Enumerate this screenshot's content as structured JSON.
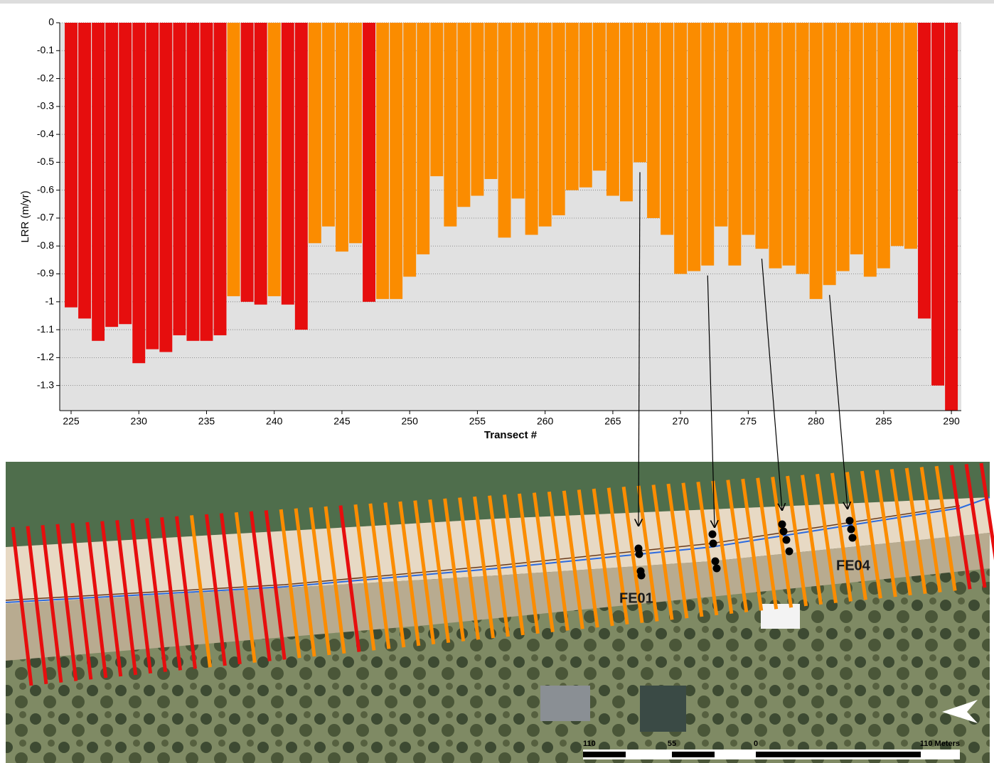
{
  "chart_data": {
    "type": "bar",
    "y_label": "LRR (m/yr)",
    "x_label": "Transect #",
    "x": [
      225,
      226,
      227,
      228,
      229,
      230,
      231,
      232,
      233,
      234,
      235,
      236,
      237,
      238,
      239,
      240,
      241,
      242,
      243,
      244,
      245,
      246,
      247,
      248,
      249,
      250,
      251,
      252,
      253,
      254,
      255,
      256,
      257,
      258,
      259,
      260,
      261,
      262,
      263,
      264,
      265,
      266,
      267,
      268,
      269,
      270,
      271,
      272,
      273,
      274,
      275,
      276,
      277,
      278,
      279,
      280,
      281,
      282,
      283,
      284,
      285,
      286,
      287,
      288,
      289,
      290
    ],
    "values": [
      -1.02,
      -1.06,
      -1.14,
      -1.09,
      -1.08,
      -1.22,
      -1.17,
      -1.18,
      -1.12,
      -1.14,
      -1.14,
      -1.12,
      -0.98,
      -1.0,
      -1.01,
      -0.98,
      -1.01,
      -1.1,
      -0.79,
      -0.73,
      -0.82,
      -0.79,
      -1.0,
      -0.99,
      -0.99,
      -0.91,
      -0.83,
      -0.55,
      -0.73,
      -0.66,
      -0.62,
      -0.56,
      -0.77,
      -0.63,
      -0.76,
      -0.73,
      -0.69,
      -0.6,
      -0.59,
      -0.53,
      -0.62,
      -0.64,
      -0.5,
      -0.7,
      -0.76,
      -0.9,
      -0.89,
      -0.87,
      -0.73,
      -0.87,
      -0.76,
      -0.81,
      -0.88,
      -0.87,
      -0.9,
      -0.99,
      -0.94,
      -0.89,
      -0.83,
      -0.91,
      -0.88,
      -0.8,
      -0.81,
      -1.06,
      -1.3,
      -1.39
    ],
    "colors": [
      "#e60e0e",
      "#e60e0e",
      "#e60e0e",
      "#e60e0e",
      "#e60e0e",
      "#e60e0e",
      "#e60e0e",
      "#e60e0e",
      "#e60e0e",
      "#e60e0e",
      "#e60e0e",
      "#e60e0e",
      "#fb8c00",
      "#e60e0e",
      "#e60e0e",
      "#fb8c00",
      "#e60e0e",
      "#e60e0e",
      "#fb8c00",
      "#fb8c00",
      "#fb8c00",
      "#fb8c00",
      "#e60e0e",
      "#fb8c00",
      "#fb8c00",
      "#fb8c00",
      "#fb8c00",
      "#fb8c00",
      "#fb8c00",
      "#fb8c00",
      "#fb8c00",
      "#fb8c00",
      "#fb8c00",
      "#fb8c00",
      "#fb8c00",
      "#fb8c00",
      "#fb8c00",
      "#fb8c00",
      "#fb8c00",
      "#fb8c00",
      "#fb8c00",
      "#fb8c00",
      "#fb8c00",
      "#fb8c00",
      "#fb8c00",
      "#fb8c00",
      "#fb8c00",
      "#fb8c00",
      "#fb8c00",
      "#fb8c00",
      "#fb8c00",
      "#fb8c00",
      "#fb8c00",
      "#fb8c00",
      "#fb8c00",
      "#fb8c00",
      "#fb8c00",
      "#fb8c00",
      "#fb8c00",
      "#fb8c00",
      "#fb8c00",
      "#fb8c00",
      "#fb8c00",
      "#e60e0e",
      "#e60e0e",
      "#e60e0e"
    ],
    "xlim": [
      224.16,
      290.73
    ],
    "xticks": [
      225,
      230,
      235,
      240,
      245,
      250,
      255,
      260,
      265,
      270,
      275,
      280,
      285,
      290
    ],
    "ylim": [
      -1.39,
      0
    ],
    "yticks": [
      0,
      -0.1,
      -0.2,
      -0.3,
      -0.4,
      -0.5,
      -0.6,
      -0.7,
      -0.8,
      -0.9,
      -1,
      -1.1,
      -1.2,
      -1.3
    ],
    "grid": true
  },
  "map": {
    "sites": [
      "FE01",
      "FE04"
    ],
    "scale_labels": [
      "110",
      "55",
      "0",
      "110 Meters"
    ]
  }
}
